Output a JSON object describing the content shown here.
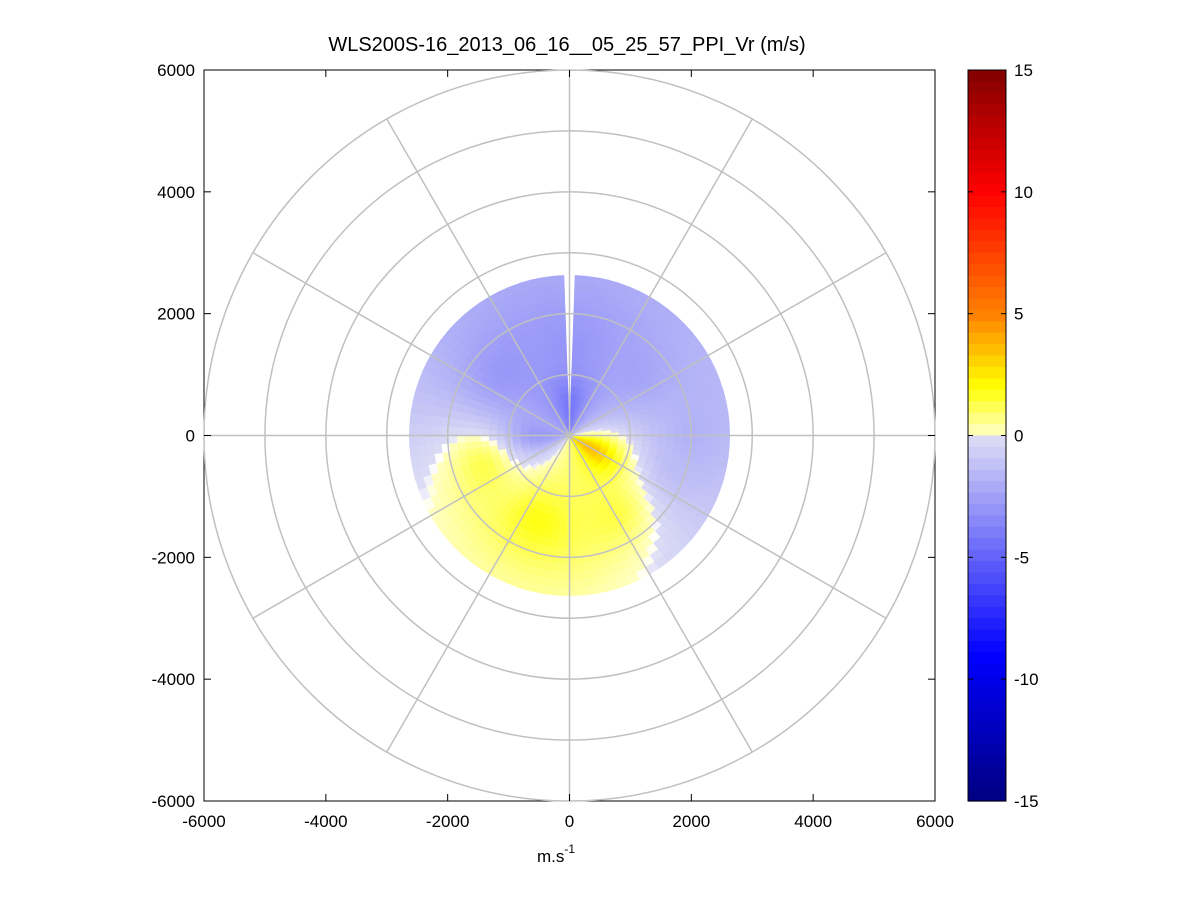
{
  "chart_data": {
    "type": "heatmap",
    "title": "WLS200S-16_2013_06_16__05_25_57_PPI_Vr (m/s)",
    "xlabel": "m.s",
    "xlabel_exponent": "-1",
    "ylabel": "",
    "xlim": [
      -6000,
      6000
    ],
    "ylim": [
      -6000,
      6000
    ],
    "x_ticks": [
      "-6000",
      "-4000",
      "-2000",
      "0",
      "2000",
      "4000",
      "6000"
    ],
    "y_ticks": [
      "6000",
      "4000",
      "2000",
      "0",
      "-2000",
      "-4000",
      "-6000"
    ],
    "colorbar": {
      "min": -15,
      "max": 15,
      "ticks": [
        "15",
        "10",
        "5",
        "0",
        "-5",
        "-10",
        "-15"
      ],
      "colormap": "blue-white-yellow-red",
      "colors": {
        "neg_dark": "#00007f",
        "neg_blue": "#0000ff",
        "neg_light": "#dcdcf5",
        "zero": "#ffffff",
        "pos_yellow": "#ffff00",
        "pos_orange": "#ff8000",
        "pos_red": "#ff0000",
        "pos_dark": "#800000"
      }
    },
    "polar_grid": {
      "ring_radii": [
        1000,
        2000,
        3000,
        4000,
        5000,
        6000
      ],
      "spoke_angles_deg": [
        0,
        30,
        60,
        90,
        120,
        150,
        180,
        210,
        240,
        270,
        300,
        330
      ],
      "grid_color": "#c0c0c0"
    },
    "field": {
      "description_angles": "math convention, degrees",
      "max_range_m": 2550,
      "gap_bearing_deg": 90,
      "samples": [
        {
          "angle": 90,
          "range": 500,
          "vr": -4.5
        },
        {
          "angle": 90,
          "range": 1500,
          "vr": -3.0
        },
        {
          "angle": 45,
          "range": 1500,
          "vr": -2.5
        },
        {
          "angle": 0,
          "range": 2000,
          "vr": -2.0
        },
        {
          "angle": 135,
          "range": 1500,
          "vr": -3.0
        },
        {
          "angle": 180,
          "range": 500,
          "vr": -3.0
        },
        {
          "angle": 200,
          "range": 1500,
          "vr": 1.5
        },
        {
          "angle": 250,
          "range": 1500,
          "vr": 2.0
        },
        {
          "angle": 300,
          "range": 1500,
          "vr": 1.5
        },
        {
          "angle": 330,
          "range": 400,
          "vr": 4.0
        },
        {
          "angle": 345,
          "range": 1800,
          "vr": -1.5
        }
      ]
    }
  }
}
